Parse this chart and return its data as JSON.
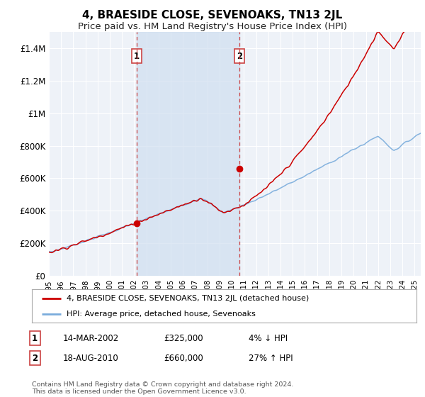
{
  "title": "4, BRAESIDE CLOSE, SEVENOAKS, TN13 2JL",
  "subtitle": "Price paid vs. HM Land Registry's House Price Index (HPI)",
  "title_fontsize": 11,
  "subtitle_fontsize": 9.5,
  "ylabel_ticks": [
    "£0",
    "£200K",
    "£400K",
    "£600K",
    "£800K",
    "£1M",
    "£1.2M",
    "£1.4M"
  ],
  "ytick_values": [
    0,
    200000,
    400000,
    600000,
    800000,
    1000000,
    1200000,
    1400000
  ],
  "ylim": [
    0,
    1500000
  ],
  "xlim_start": 1995.0,
  "xlim_end": 2025.5,
  "background_color": "#ffffff",
  "plot_bg_color": "#eef2f8",
  "shade_color": "#d0dff0",
  "grid_color": "#ffffff",
  "sale1_year": 2002.2,
  "sale1_price": 325000,
  "sale1_label": "1",
  "sale2_year": 2010.62,
  "sale2_price": 660000,
  "sale2_label": "2",
  "red_line_color": "#cc0000",
  "blue_line_color": "#7aacdc",
  "dashed_line_color": "#cc4444",
  "legend_label_red": "4, BRAESIDE CLOSE, SEVENOAKS, TN13 2JL (detached house)",
  "legend_label_blue": "HPI: Average price, detached house, Sevenoaks",
  "annotation1_date": "14-MAR-2002",
  "annotation1_price": "£325,000",
  "annotation1_hpi": "4% ↓ HPI",
  "annotation2_date": "18-AUG-2010",
  "annotation2_price": "£660,000",
  "annotation2_hpi": "27% ↑ HPI",
  "footer": "Contains HM Land Registry data © Crown copyright and database right 2024.\nThis data is licensed under the Open Government Licence v3.0.",
  "xtick_years": [
    1995,
    1996,
    1997,
    1998,
    1999,
    2000,
    2001,
    2002,
    2003,
    2004,
    2005,
    2006,
    2007,
    2008,
    2009,
    2010,
    2011,
    2012,
    2013,
    2014,
    2015,
    2016,
    2017,
    2018,
    2019,
    2020,
    2021,
    2022,
    2023,
    2024,
    2025
  ]
}
